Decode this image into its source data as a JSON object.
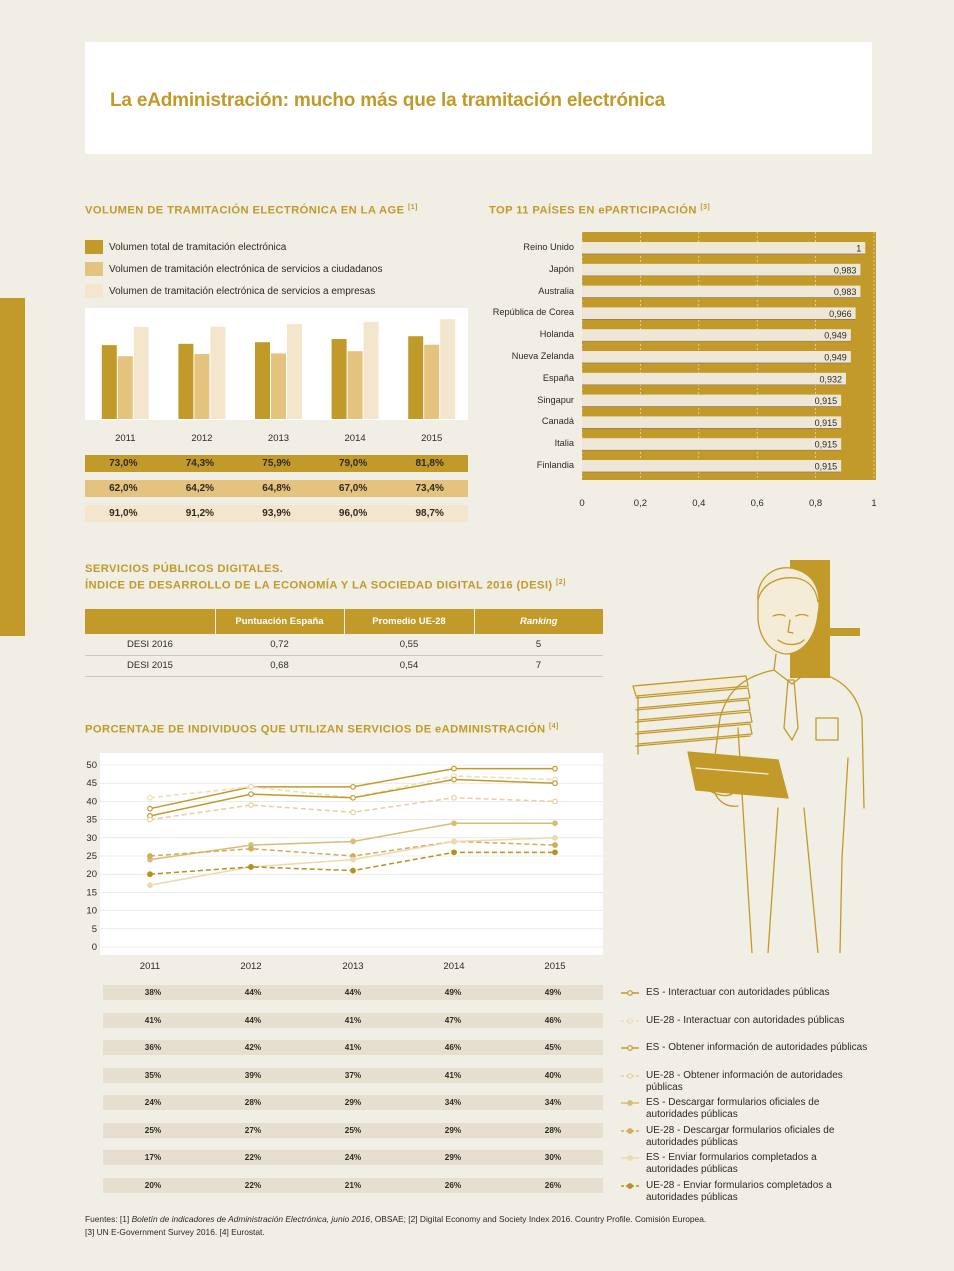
{
  "page_title": "La eAdministración: mucho más que la tramitación electrónica",
  "colors": {
    "gold": "#c29a2a",
    "light_gold": "#e3c37e",
    "cream": "#f3e6cc",
    "background": "#f1eee6"
  },
  "sections": {
    "volumen": {
      "title": "VOLUMEN DE TRAMITACIÓN ELECTRÓNICA EN LA AGE",
      "ref": "[1]"
    },
    "top11": {
      "title": "TOP 11 PAÍSES EN ePARTICIPACIÓN",
      "ref": "[3]"
    },
    "desi": {
      "title_line1": "SERVICIOS PÚBLICOS DIGITALES.",
      "title_line2": "ÍNDICE DE DESARROLLO DE LA ECONOMÍA Y LA SOCIEDAD DIGITAL 2016 (DESI)",
      "ref": "[2]"
    },
    "porcentaje": {
      "title": "PORCENTAJE DE INDIVIDUOS QUE UTILIZAN SERVICIOS DE eADMINISTRACIÓN",
      "ref": "[4]"
    }
  },
  "desi_table": {
    "headers": [
      "",
      "Puntuación España",
      "Promedio UE-28",
      "Ranking"
    ],
    "rows": [
      [
        "DESI 2016",
        "0,72",
        "0,55",
        "5"
      ],
      [
        "DESI 2015",
        "0,68",
        "0,54",
        "7"
      ]
    ]
  },
  "sources": {
    "line1_prefix": "Fuentes: [1] ",
    "line1_italic": "Boletín de indicadores de Administración Electrónica, junio 2016",
    "line1_suffix": ", OBSAE; [2] Digital Economy and Society Index 2016. Country Profile. Comisión Europea.",
    "line2": "[3] UN E-Government Survey 2016. [4] Eurostat."
  },
  "chart_data": [
    {
      "type": "bar",
      "categories": [
        "2011",
        "2012",
        "2013",
        "2014",
        "2015"
      ],
      "series": [
        {
          "name": "Volumen total de tramitación electrónica",
          "values": [
            73.0,
            74.3,
            75.9,
            79.0,
            81.8
          ],
          "labels": [
            "73,0%",
            "74,3%",
            "75,9%",
            "79,0%",
            "81,8%"
          ],
          "color": "#c29a2a"
        },
        {
          "name": "Volumen de tramitación electrónica de servicios a ciudadanos",
          "values": [
            62.0,
            64.2,
            64.8,
            67.0,
            73.4
          ],
          "labels": [
            "62,0%",
            "64,2%",
            "64,8%",
            "67,0%",
            "73,4%"
          ],
          "color": "#e3c37e"
        },
        {
          "name": "Volumen de tramitación electrónica de servicios a empresas",
          "values": [
            91.0,
            91.2,
            93.9,
            96.0,
            98.7
          ],
          "labels": [
            "91,0%",
            "91,2%",
            "93,9%",
            "96,0%",
            "98,7%"
          ],
          "color": "#f3e6cc"
        }
      ]
    },
    {
      "type": "bar",
      "orientation": "horizontal",
      "categories": [
        "Reino Unido",
        "Japón",
        "Australia",
        "República de Corea",
        "Holanda",
        "Nueva Zelanda",
        "España",
        "Singapur",
        "Canadá",
        "Italia",
        "Finlandia"
      ],
      "values": [
        1,
        0.983,
        0.983,
        0.966,
        0.949,
        0.949,
        0.932,
        0.915,
        0.915,
        0.915,
        0.915
      ],
      "labels": [
        "1",
        "0,983",
        "0,983",
        "0,966",
        "0,949",
        "0,949",
        "0,932",
        "0,915",
        "0,915",
        "0,915",
        "0,915"
      ],
      "x_ticks": [
        "0",
        "0,2",
        "0,4",
        "0,6",
        "0,8",
        "1"
      ],
      "xlim": [
        0,
        1
      ]
    },
    {
      "type": "line",
      "x": [
        "2011",
        "2012",
        "2013",
        "2014",
        "2015"
      ],
      "ylim": [
        0,
        50
      ],
      "y_ticks": [
        "0",
        "5",
        "10",
        "15",
        "20",
        "25",
        "30",
        "35",
        "40",
        "45",
        "50"
      ],
      "grid": true,
      "series": [
        {
          "name": "ES - Interactuar con autoridades públicas",
          "values": [
            38,
            44,
            44,
            49,
            49
          ],
          "labels": [
            "38%",
            "44%",
            "44%",
            "49%",
            "49%"
          ],
          "color": "#c29a2a",
          "dashed": false,
          "marker": "open"
        },
        {
          "name": "UE-28 - Interactuar con autoridades públicas",
          "values": [
            41,
            44,
            41,
            47,
            46
          ],
          "labels": [
            "41%",
            "44%",
            "41%",
            "47%",
            "46%"
          ],
          "color": "#efdcb4",
          "dashed": true,
          "marker": "open"
        },
        {
          "name": "ES - Obtener información de autoridades públicas",
          "values": [
            36,
            42,
            41,
            46,
            45
          ],
          "labels": [
            "36%",
            "42%",
            "41%",
            "46%",
            "45%"
          ],
          "color": "#c29a2a",
          "dashed": false,
          "marker": "open"
        },
        {
          "name": "UE-28 - Obtener información de autoridades públicas",
          "values": [
            35,
            39,
            37,
            41,
            40
          ],
          "labels": [
            "35%",
            "39%",
            "37%",
            "41%",
            "40%"
          ],
          "color": "#e8cf9c",
          "dashed": true,
          "marker": "open"
        },
        {
          "name": "ES - Descargar formularios oficiales de autoridades públicas",
          "values": [
            24,
            28,
            29,
            34,
            34
          ],
          "labels": [
            "24%",
            "28%",
            "29%",
            "34%",
            "34%"
          ],
          "color": "#d9bc78",
          "dashed": false,
          "marker": "filled"
        },
        {
          "name": "UE-28 - Descargar formularios oficiales de autoridades públicas",
          "values": [
            25,
            27,
            25,
            29,
            28
          ],
          "labels": [
            "25%",
            "27%",
            "25%",
            "29%",
            "28%"
          ],
          "color": "#cfae5a",
          "dashed": true,
          "marker": "filled"
        },
        {
          "name": "ES - Enviar formularios completados a autoridades públicas",
          "values": [
            17,
            22,
            24,
            29,
            30
          ],
          "labels": [
            "17%",
            "22%",
            "24%",
            "29%",
            "30%"
          ],
          "color": "#ecd9ad",
          "dashed": false,
          "marker": "filled"
        },
        {
          "name": "UE-28 - Enviar formularios completados a autoridades públicas",
          "values": [
            20,
            22,
            21,
            26,
            26
          ],
          "labels": [
            "20%",
            "22%",
            "21%",
            "26%",
            "26%"
          ],
          "color": "#b8901f",
          "dashed": true,
          "marker": "filled"
        }
      ]
    }
  ]
}
